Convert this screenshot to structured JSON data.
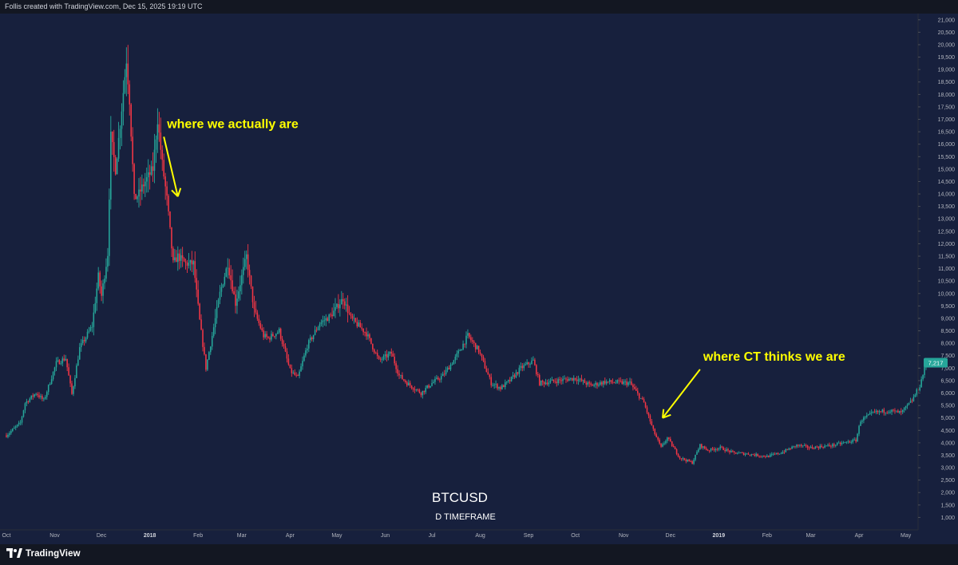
{
  "header": {
    "credit": "Follis created with TradingView.com, Dec 15, 2025 19:19 UTC"
  },
  "footer": {
    "logo_text": "TradingView"
  },
  "colors": {
    "background": "#17203d",
    "frame": "#131722",
    "up_candle": "#26a69a",
    "down_candle": "#f23645",
    "annotation": "#ffff00",
    "axis_text": "#b2b5be",
    "last_price_tag": "#26a69a"
  },
  "chart_data": {
    "type": "candlestick",
    "symbol": "BTCUSD",
    "subtitle": "D TIMEFRAME",
    "title": "BTCUSD",
    "x_tick_labels": [
      "Oct",
      "Nov",
      "Dec",
      "2018",
      "Feb",
      "Mar",
      "Apr",
      "May",
      "Jun",
      "Jul",
      "Aug",
      "Sep",
      "Oct",
      "Nov",
      "Dec",
      "2019",
      "Feb",
      "Mar",
      "Apr",
      "May"
    ],
    "x_tick_dates": [
      "2017-10-01",
      "2017-11-01",
      "2017-12-01",
      "2018-01-01",
      "2018-02-01",
      "2018-03-01",
      "2018-04-01",
      "2018-05-01",
      "2018-06-01",
      "2018-07-01",
      "2018-08-01",
      "2018-09-01",
      "2018-10-01",
      "2018-11-01",
      "2018-12-01",
      "2019-01-01",
      "2019-02-01",
      "2019-03-01",
      "2019-04-01",
      "2019-05-01"
    ],
    "x_range": [
      "2017-10-01",
      "2019-05-14"
    ],
    "y_range": [
      500,
      21250
    ],
    "y_ticks": [
      1000,
      1500,
      2000,
      2500,
      3000,
      3500,
      4000,
      4500,
      5000,
      5500,
      6000,
      6500,
      7000,
      7500,
      8000,
      8500,
      9000,
      9500,
      10000,
      10500,
      11000,
      11500,
      12000,
      12500,
      13000,
      13500,
      14000,
      14500,
      15000,
      15500,
      16000,
      16500,
      17000,
      17500,
      18000,
      18500,
      19000,
      19500,
      20000,
      20500,
      21000
    ],
    "last_price": "7,217",
    "price_path": [
      [
        "2017-10-01",
        4300
      ],
      [
        "2017-10-10",
        4800
      ],
      [
        "2017-10-13",
        5600
      ],
      [
        "2017-10-20",
        6000
      ],
      [
        "2017-10-25",
        5700
      ],
      [
        "2017-11-02",
        7200
      ],
      [
        "2017-11-08",
        7400
      ],
      [
        "2017-11-12",
        5950
      ],
      [
        "2017-11-17",
        7800
      ],
      [
        "2017-11-25",
        8700
      ],
      [
        "2017-11-29",
        10700
      ],
      [
        "2017-12-01",
        9900
      ],
      [
        "2017-12-05",
        11600
      ],
      [
        "2017-12-07",
        16300
      ],
      [
        "2017-12-10",
        15000
      ],
      [
        "2017-12-13",
        16800
      ],
      [
        "2017-12-17",
        19400
      ],
      [
        "2017-12-19",
        17800
      ],
      [
        "2017-12-22",
        13800
      ],
      [
        "2017-12-25",
        14000
      ],
      [
        "2017-12-29",
        14500
      ],
      [
        "2018-01-03",
        15000
      ],
      [
        "2018-01-06",
        17000
      ],
      [
        "2018-01-09",
        15200
      ],
      [
        "2018-01-12",
        13800
      ],
      [
        "2018-01-16",
        11200
      ],
      [
        "2018-01-19",
        11500
      ],
      [
        "2018-01-24",
        11200
      ],
      [
        "2018-01-29",
        11200
      ],
      [
        "2018-02-02",
        8900
      ],
      [
        "2018-02-06",
        7000
      ],
      [
        "2018-02-10",
        8300
      ],
      [
        "2018-02-15",
        10000
      ],
      [
        "2018-02-20",
        11200
      ],
      [
        "2018-02-25",
        9600
      ],
      [
        "2018-03-04",
        11500
      ],
      [
        "2018-03-09",
        9300
      ],
      [
        "2018-03-15",
        8300
      ],
      [
        "2018-03-18",
        8200
      ],
      [
        "2018-03-25",
        8500
      ],
      [
        "2018-04-01",
        6900
      ],
      [
        "2018-04-06",
        6600
      ],
      [
        "2018-04-12",
        7900
      ],
      [
        "2018-04-20",
        8800
      ],
      [
        "2018-04-27",
        9100
      ],
      [
        "2018-05-05",
        9800
      ],
      [
        "2018-05-10",
        9000
      ],
      [
        "2018-05-20",
        8400
      ],
      [
        "2018-05-28",
        7300
      ],
      [
        "2018-06-05",
        7600
      ],
      [
        "2018-06-10",
        6700
      ],
      [
        "2018-06-15",
        6400
      ],
      [
        "2018-06-24",
        6000
      ],
      [
        "2018-07-01",
        6400
      ],
      [
        "2018-07-08",
        6700
      ],
      [
        "2018-07-16",
        7400
      ],
      [
        "2018-07-24",
        8300
      ],
      [
        "2018-07-31",
        7700
      ],
      [
        "2018-08-08",
        6400
      ],
      [
        "2018-08-14",
        6200
      ],
      [
        "2018-08-20",
        6500
      ],
      [
        "2018-08-27",
        7000
      ],
      [
        "2018-09-04",
        7300
      ],
      [
        "2018-09-08",
        6400
      ],
      [
        "2018-09-20",
        6500
      ],
      [
        "2018-10-01",
        6600
      ],
      [
        "2018-10-11",
        6300
      ],
      [
        "2018-10-20",
        6450
      ],
      [
        "2018-11-05",
        6400
      ],
      [
        "2018-11-14",
        5600
      ],
      [
        "2018-11-20",
        4500
      ],
      [
        "2018-11-25",
        3800
      ],
      [
        "2018-11-29",
        4200
      ],
      [
        "2018-12-07",
        3400
      ],
      [
        "2018-12-15",
        3200
      ],
      [
        "2018-12-20",
        3900
      ],
      [
        "2018-12-25",
        3700
      ],
      [
        "2019-01-02",
        3800
      ],
      [
        "2019-01-10",
        3600
      ],
      [
        "2019-01-20",
        3550
      ],
      [
        "2019-02-01",
        3450
      ],
      [
        "2019-02-10",
        3600
      ],
      [
        "2019-02-20",
        3900
      ],
      [
        "2019-03-01",
        3800
      ],
      [
        "2019-03-15",
        3900
      ],
      [
        "2019-03-30",
        4100
      ],
      [
        "2019-04-02",
        4900
      ],
      [
        "2019-04-10",
        5200
      ],
      [
        "2019-04-20",
        5300
      ],
      [
        "2019-04-28",
        5200
      ],
      [
        "2019-05-05",
        5700
      ],
      [
        "2019-05-10",
        6300
      ],
      [
        "2019-05-14",
        7217
      ]
    ],
    "annotations": [
      {
        "text": "where we actually are",
        "from": [
          "2018-01-10",
          16300
        ],
        "to": [
          "2018-01-19",
          13900
        ]
      },
      {
        "text": "where CT thinks we are",
        "from": [
          "2018-12-20",
          6950
        ],
        "to": [
          "2018-11-26",
          5000
        ]
      }
    ]
  }
}
